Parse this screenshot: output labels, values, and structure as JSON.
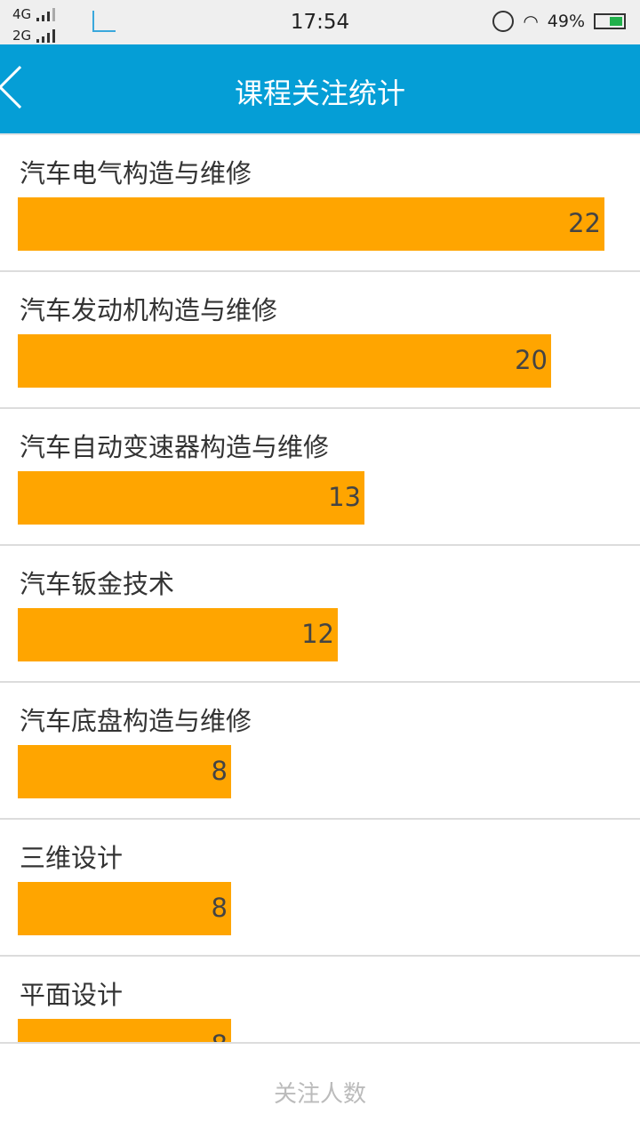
{
  "status_bar": {
    "network1": "4G",
    "network2": "2G",
    "time": "17:54",
    "battery": "49%"
  },
  "header": {
    "title": "课程关注统计"
  },
  "chart_data": {
    "type": "bar",
    "orientation": "horizontal",
    "bar_color": "#ffa500",
    "categories": [
      "汽车电气构造与维修",
      "汽车发动机构造与维修",
      "汽车自动变速器构造与维修",
      "汽车钣金技术",
      "汽车底盘构造与维修",
      "三维设计",
      "平面设计"
    ],
    "values": [
      22,
      20,
      13,
      12,
      8,
      8,
      8
    ],
    "xlim": [
      0,
      24
    ]
  },
  "footer": {
    "label": "关注人数"
  }
}
